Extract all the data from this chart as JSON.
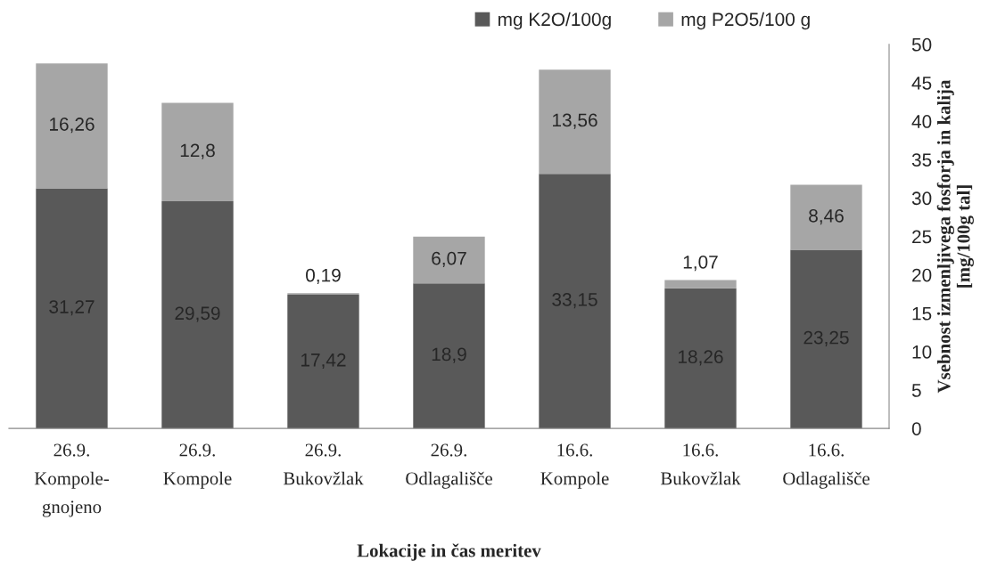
{
  "chart_data": {
    "type": "bar",
    "stacked": true,
    "xlabel": "Lokacije in čas meritev",
    "ylabel": "Vsebnost izmenljivega fosforja in kalija\n[mg/100g tal]",
    "categories": [
      "26.9.\nKompole-\ngnojeno",
      "26.9.\nKompole",
      "26.9.\nBukovžlak",
      "26.9.\nOdlagališče",
      "16.6.\nKompole",
      "16.6.\nBukovžlak",
      "16.6.\nOdlagališče"
    ],
    "series": [
      {
        "name": "mg K2O/100g",
        "color": "#595959",
        "values": [
          31.27,
          29.59,
          17.42,
          18.9,
          33.15,
          18.26,
          23.25
        ],
        "value_labels": [
          "31,27",
          "29,59",
          "17,42",
          "18,9",
          "33,15",
          "18,26",
          "23,25"
        ]
      },
      {
        "name": "mg P2O5/100 g",
        "color": "#a6a6a6",
        "values": [
          16.26,
          12.8,
          0.19,
          6.07,
          13.56,
          1.07,
          8.46
        ],
        "value_labels": [
          "16,26",
          "12,8",
          "0,19",
          "6,07",
          "13,56",
          "1,07",
          "8,46"
        ]
      }
    ],
    "ylim": [
      0,
      50
    ],
    "yticks": [
      0,
      5,
      10,
      15,
      20,
      25,
      30,
      35,
      40,
      45,
      50
    ],
    "grid": false,
    "legend": "top"
  }
}
